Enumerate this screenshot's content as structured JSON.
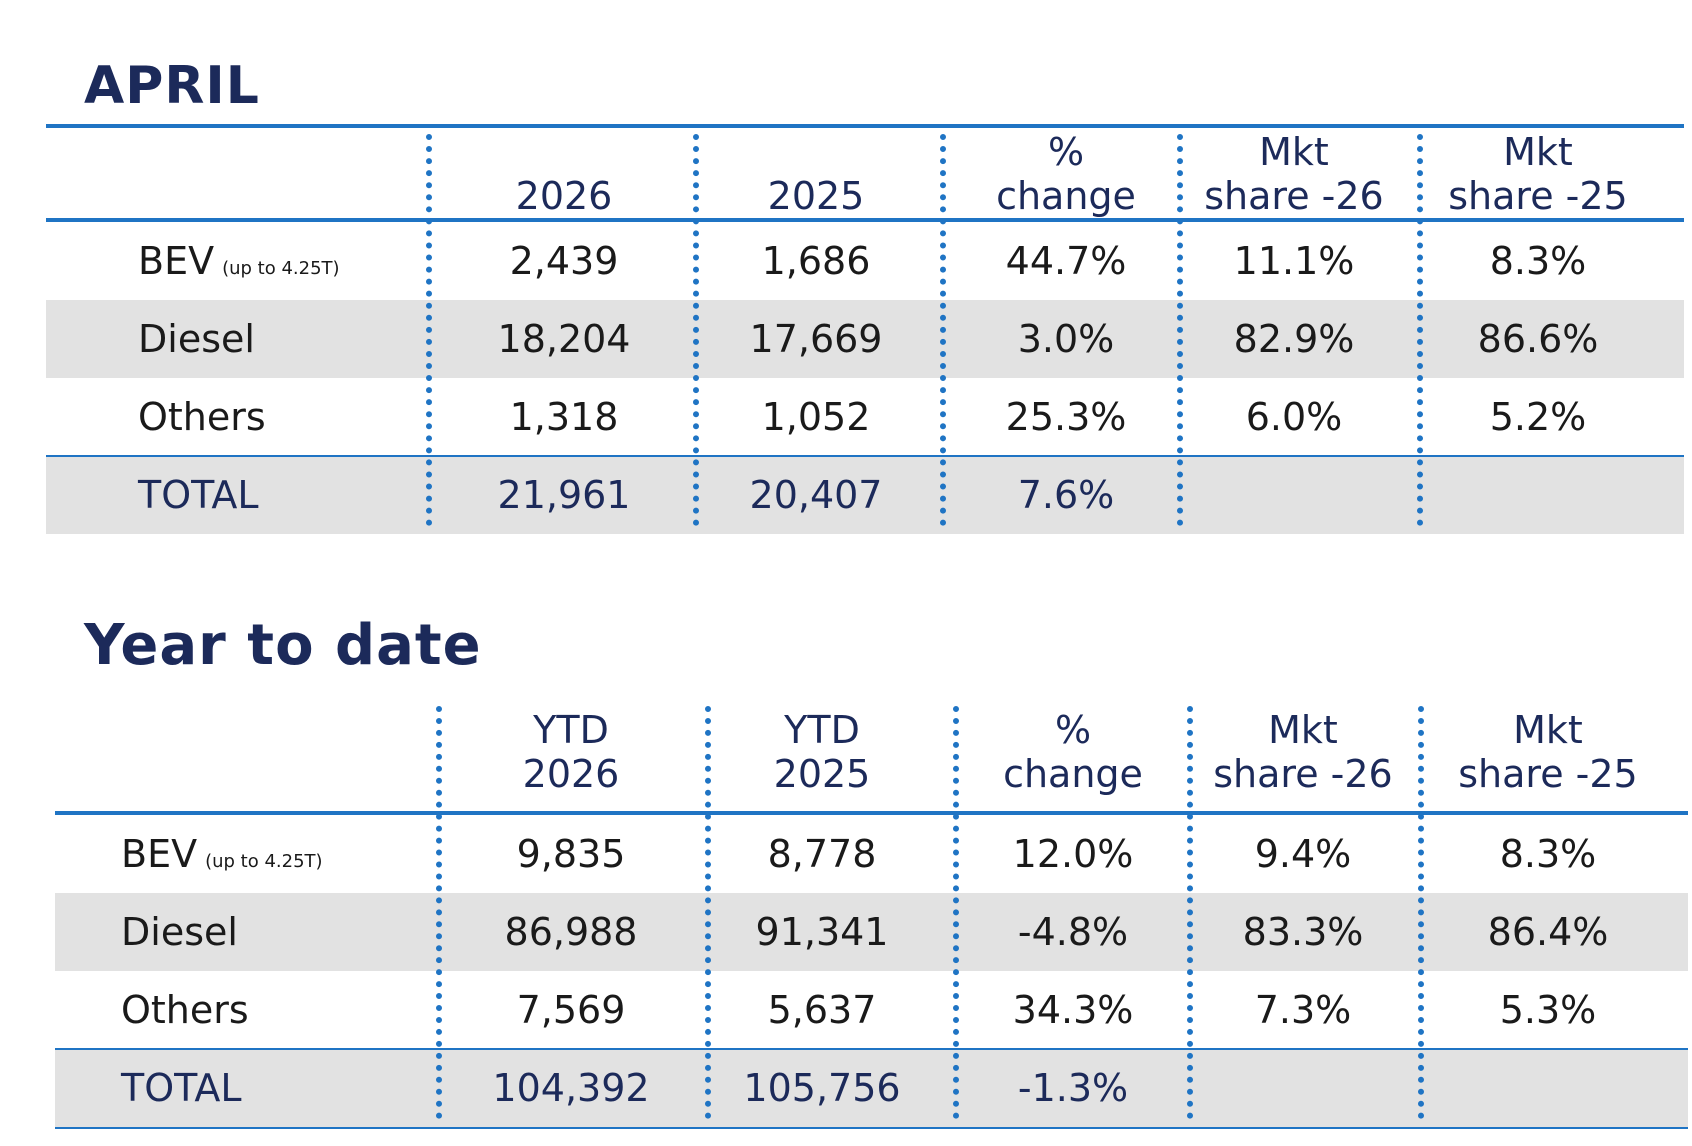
{
  "april": {
    "title": "APRIL",
    "headers": [
      {
        "l1": "",
        "l2": "2026"
      },
      {
        "l1": "",
        "l2": "2025"
      },
      {
        "l1": "%",
        "l2": "change"
      },
      {
        "l1": "Mkt",
        "l2": "share -26"
      },
      {
        "l1": "Mkt",
        "l2": "share -25"
      }
    ],
    "rows": [
      {
        "label": "BEV",
        "sub": "(up to 4.25T)",
        "v": [
          "2,439",
          "1,686",
          "44.7%",
          "11.1%",
          "8.3%"
        ]
      },
      {
        "label": "Diesel",
        "sub": "",
        "v": [
          "18,204",
          "17,669",
          "3.0%",
          "82.9%",
          "86.6%"
        ]
      },
      {
        "label": "Others",
        "sub": "",
        "v": [
          "1,318",
          "1,052",
          "25.3%",
          "6.0%",
          "5.2%"
        ]
      },
      {
        "label": "TOTAL",
        "sub": "",
        "v": [
          "21,961",
          "20,407",
          "7.6%",
          "",
          ""
        ]
      }
    ]
  },
  "ytd": {
    "title": "Year to date",
    "headers": [
      {
        "l1": "YTD",
        "l2": "2026"
      },
      {
        "l1": "YTD",
        "l2": "2025"
      },
      {
        "l1": "%",
        "l2": "change"
      },
      {
        "l1": "Mkt",
        "l2": "share -26"
      },
      {
        "l1": "Mkt",
        "l2": "share -25"
      }
    ],
    "rows": [
      {
        "label": "BEV",
        "sub": "(up to 4.25T)",
        "v": [
          "9,835",
          "8,778",
          "12.0%",
          "9.4%",
          "8.3%"
        ]
      },
      {
        "label": "Diesel",
        "sub": "",
        "v": [
          "86,988",
          "91,341",
          "-4.8%",
          "83.3%",
          "86.4%"
        ]
      },
      {
        "label": "Others",
        "sub": "",
        "v": [
          "7,569",
          "5,637",
          "34.3%",
          "7.3%",
          "5.3%"
        ]
      },
      {
        "label": "TOTAL",
        "sub": "",
        "v": [
          "104,392",
          "105,756",
          "-1.3%",
          "",
          ""
        ]
      }
    ]
  }
}
